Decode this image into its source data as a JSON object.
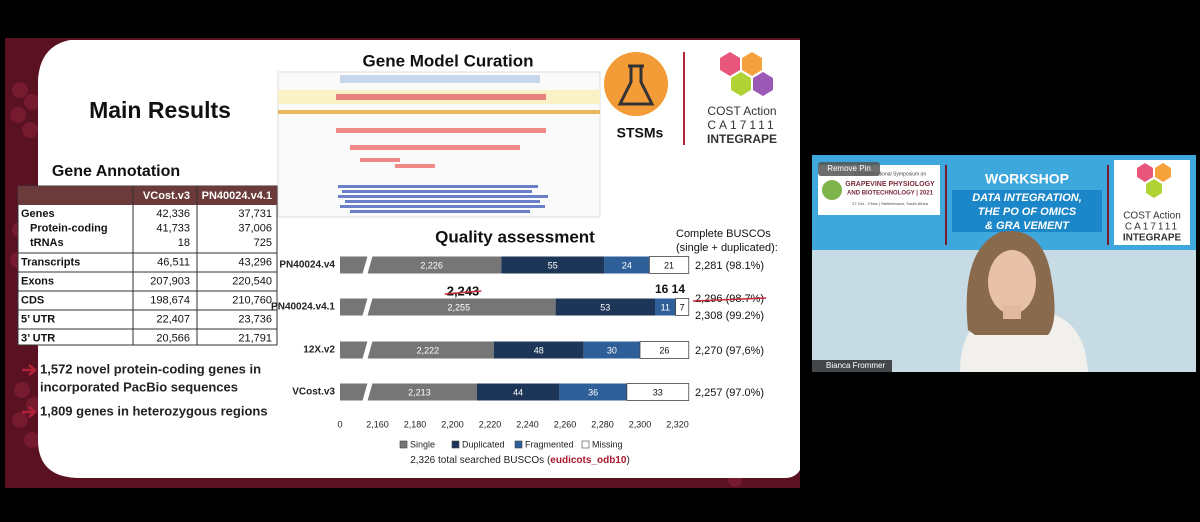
{
  "window": {
    "pin_button": "Remove Pin",
    "participant_name": "Bianca Frommer"
  },
  "slide": {
    "title": "Main Results",
    "section_curation": "Gene Model Curation",
    "stsms": "STSMs",
    "cost_logo": [
      "COST Action",
      "CA17111",
      "INTEGRAPE"
    ],
    "table": {
      "title": "Gene Annotation",
      "header": [
        "VCost.v3",
        "PN40024.v4.1"
      ],
      "rows": [
        {
          "label": "Genes",
          "values": [
            "42,336",
            "37,731"
          ],
          "indent": false
        },
        {
          "label": "Protein-coding",
          "values": [
            "41,733",
            "37,006"
          ],
          "indent": true
        },
        {
          "label": "tRNAs",
          "values": [
            "18",
            "725"
          ],
          "indent": true
        },
        {
          "label": "Transcripts",
          "values": [
            "46,511",
            "43,296"
          ],
          "indent": false
        },
        {
          "label": "Exons",
          "values": [
            "207,903",
            "220,540"
          ],
          "indent": false
        },
        {
          "label": "CDS",
          "values": [
            "198,674",
            "210,760"
          ],
          "indent": false
        },
        {
          "label": "5’ UTR",
          "values": [
            "22,407",
            "23,736"
          ],
          "indent": false
        },
        {
          "label": "3’ UTR",
          "values": [
            "20,566",
            "21,791"
          ],
          "indent": false
        }
      ]
    },
    "bullets": [
      [
        "1,572 novel protein-coding genes in",
        "incorporated PacBio sequences"
      ],
      [
        "1,809 genes in heterozygous regions"
      ]
    ]
  },
  "video": {
    "conference": [
      "XIth International Symposium on",
      "GRAPEVINE PHYSIOLOGY",
      "AND BIOTECHNOLOGY | 2021",
      "27 Oct - 3 Nov | Stellenbosch, South Africa"
    ],
    "workshop": "WORKSHOP",
    "workshop_lines": [
      "DATA INTEGRATION,",
      "THE PO       OF OMICS",
      "& GRA            VEMENT"
    ],
    "cost_logo": [
      "COST Action",
      "CA17111",
      "INTEGRAPE"
    ]
  },
  "chart_data": {
    "type": "bar",
    "orientation": "horizontal",
    "stacked": true,
    "title": "Quality assessment",
    "categories": [
      "PN40024.v4",
      "PN40024.v4.1",
      "12X.v2",
      "VCost.v3"
    ],
    "series": [
      {
        "name": "Single",
        "color": "#767676",
        "values": [
          2226,
          2255,
          2222,
          2213
        ],
        "value_labels": [
          "2,226",
          "2,255",
          "2,222",
          "2,213"
        ]
      },
      {
        "name": "Duplicated",
        "color": "#1d3557",
        "values": [
          55,
          53,
          48,
          44
        ]
      },
      {
        "name": "Fragmented",
        "color": "#2f5f98",
        "values": [
          24,
          11,
          30,
          36
        ]
      },
      {
        "name": "Missing",
        "color": "#ffffff",
        "values": [
          21,
          7,
          26,
          33
        ]
      }
    ],
    "xlim": [
      2140,
      2330
    ],
    "axis_break": true,
    "xticks": [
      0,
      {
        "value": 2160,
        "label": "2,160"
      },
      {
        "value": 2180,
        "label": "2,180"
      },
      {
        "value": 2200,
        "label": "2,200"
      },
      {
        "value": 2220,
        "label": "2,220"
      },
      {
        "value": 2240,
        "label": "2,240"
      },
      {
        "value": 2260,
        "label": "2,260"
      },
      {
        "value": 2280,
        "label": "2,280"
      },
      {
        "value": 2300,
        "label": "2,300"
      },
      {
        "value": 2320,
        "label": "2,320"
      }
    ],
    "totals_title": [
      "Complete BUSCOs",
      "(single + duplicated):"
    ],
    "totals_labels": [
      "2,281 (98.1%)",
      "2,308 (99.2%)",
      "2,270 (97,6%)",
      "2,257 (97.0%)"
    ],
    "struck_annotations": [
      "2,243",
      "16 14",
      "2,296 (98.7%)"
    ],
    "footer": [
      "2,326 total searched BUSCOs (",
      "eudicots_odb10",
      ")"
    ]
  }
}
